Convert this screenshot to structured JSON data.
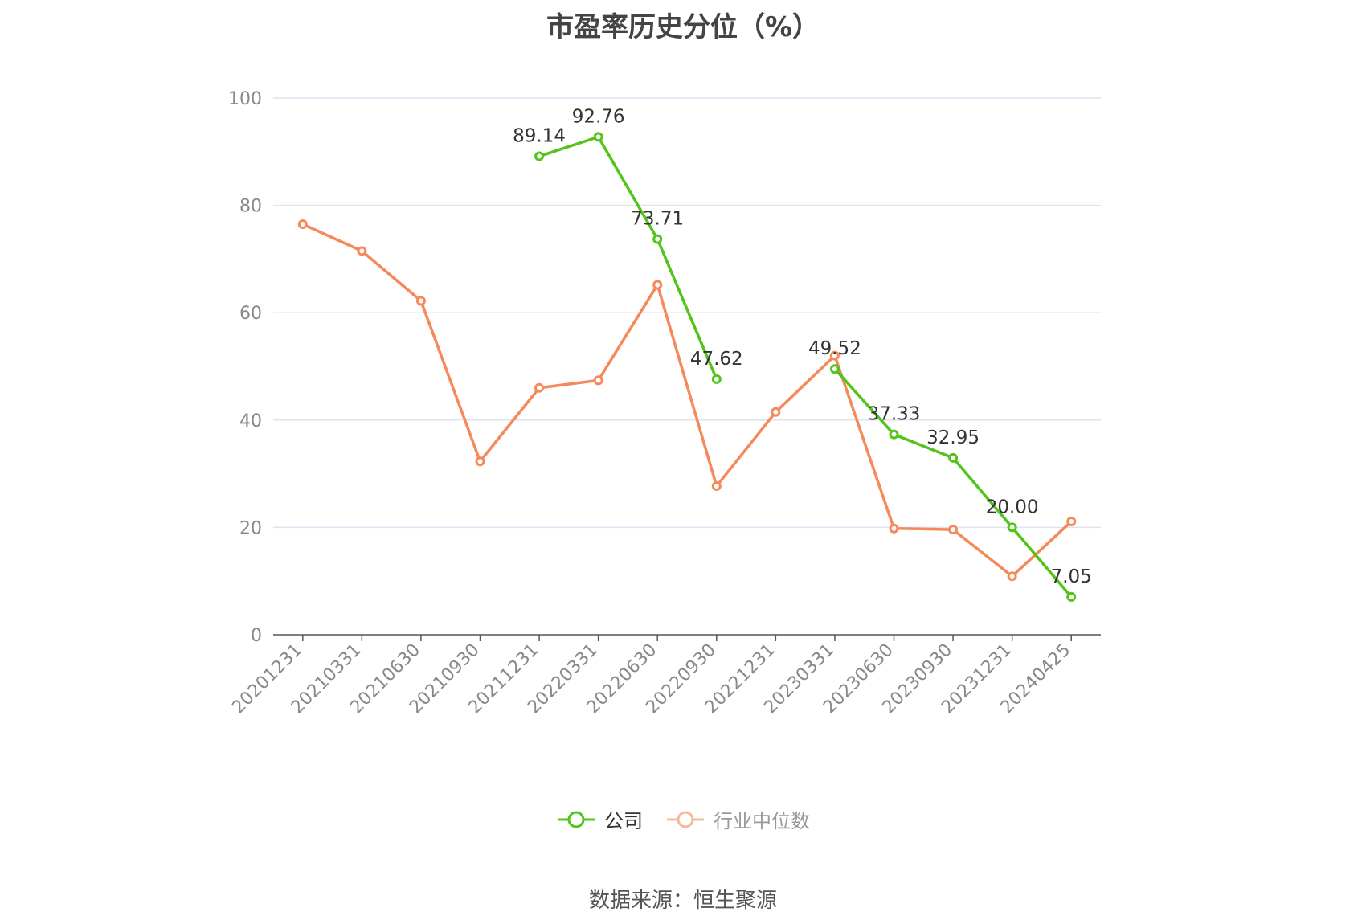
{
  "title": "市盈率历史分位（%）",
  "source": "数据来源：恒生聚源",
  "colors": {
    "company": "#52c41a",
    "industry": "#f5895a",
    "industry_legend": "#f8b89b",
    "grid": "#dde3f0",
    "axis": "#555555"
  },
  "chart_data": {
    "type": "line",
    "title": "市盈率历史分位（%）",
    "categories": [
      "20201231",
      "20210331",
      "20210630",
      "20210930",
      "20211231",
      "20220331",
      "20220630",
      "20220930",
      "20221231",
      "20230331",
      "20230630",
      "20230930",
      "20231231",
      "20240425"
    ],
    "ylim": [
      0,
      100
    ],
    "yticks": [
      0,
      20,
      40,
      60,
      80,
      100
    ],
    "grid": true,
    "legend_position": "bottom",
    "series": [
      {
        "name": "公司",
        "values": [
          null,
          null,
          null,
          null,
          89.14,
          92.76,
          73.71,
          47.62,
          null,
          49.52,
          37.33,
          32.95,
          20.0,
          7.05
        ],
        "labels": [
          null,
          null,
          null,
          null,
          "89.14",
          "92.76",
          "73.71",
          "47.62",
          null,
          "49.52",
          "37.33",
          "32.95",
          "20.00",
          "7.05"
        ]
      },
      {
        "name": "行业中位数",
        "values": [
          76.5,
          71.5,
          62.2,
          32.3,
          46.0,
          47.4,
          65.2,
          27.7,
          41.5,
          52.0,
          19.8,
          19.6,
          10.9,
          21.1
        ]
      }
    ]
  }
}
